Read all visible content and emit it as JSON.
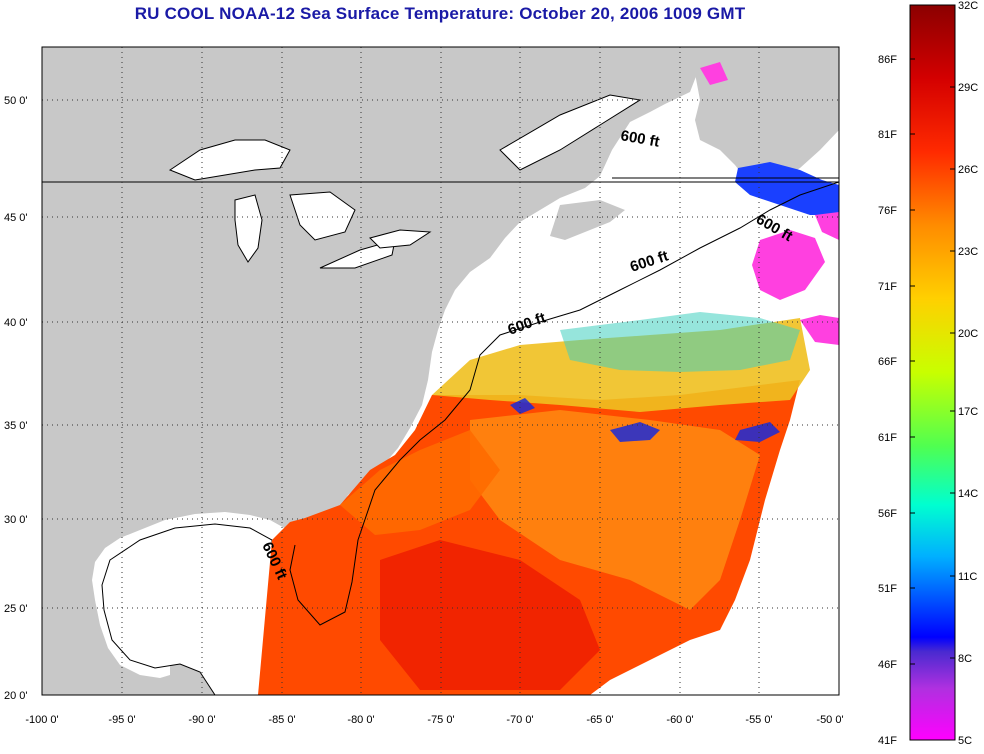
{
  "title": "RU COOL  NOAA-12  Sea Surface Temperature:  October 20, 2006 1009 GMT",
  "map": {
    "lon_range": [
      -100,
      -50
    ],
    "lat_range": [
      20,
      52.5
    ],
    "lon_ticks": [
      "-100 0'",
      "-95 0'",
      "-90 0'",
      "-85 0'",
      "-80 0'",
      "-75 0'",
      "-70 0'",
      "-65 0'",
      "-60 0'",
      "-55 0'",
      "-50 0'"
    ],
    "lat_ticks": [
      "50 0'",
      "45 0'",
      "40 0'",
      "35 0'",
      "30 0'",
      "25 0'",
      "20 0'"
    ],
    "grid": "dotted",
    "land_color": "#c8c8c8",
    "cloud_color": "#ffffff",
    "contour_label": "600 ft"
  },
  "colorbar": {
    "celsius_labels": [
      "32C",
      "29C",
      "26C",
      "23C",
      "20C",
      "17C",
      "14C",
      "11C",
      "8C",
      "5C"
    ],
    "fahrenheit_labels": [
      "86F",
      "81F",
      "76F",
      "71F",
      "66F",
      "61F",
      "56F",
      "51F",
      "46F",
      "41F"
    ],
    "range_c": [
      5,
      32
    ],
    "colors_top_to_bottom": [
      "#8b0000",
      "#ff0000",
      "#ff6a00",
      "#ffb000",
      "#ffff00",
      "#7fff00",
      "#00ff7f",
      "#00ffff",
      "#007fff",
      "#0000ff",
      "#3b2fd9",
      "#8a2be2",
      "#ff00ff"
    ]
  }
}
